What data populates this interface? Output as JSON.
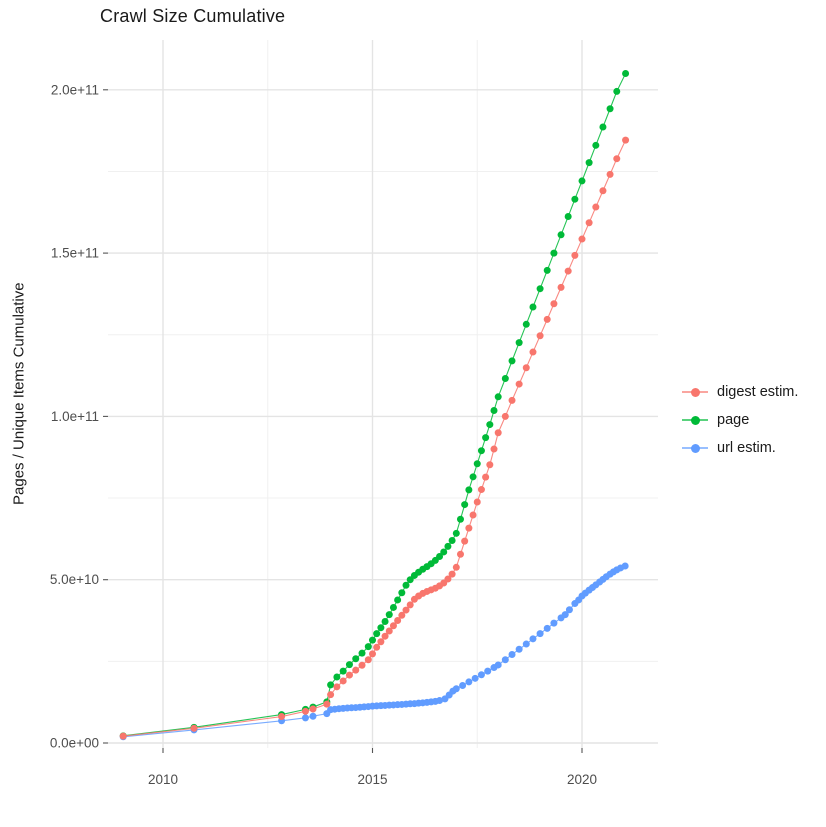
{
  "title": "Crawl Size Cumulative",
  "chart_data": {
    "type": "scatter",
    "title": "Crawl Size Cumulative",
    "xlabel": "",
    "ylabel": "Pages / Unique Items Cumulative",
    "grid": true,
    "legend_position": "right",
    "x_axis": {
      "breaks": [
        2010,
        2015,
        2020
      ],
      "labels": [
        "2010",
        "2015",
        "2020"
      ],
      "minor_breaks": [
        2012.5,
        2017.5
      ],
      "range": [
        2008.7,
        2021.8
      ]
    },
    "y_axis": {
      "breaks_billions": [
        0,
        50,
        100,
        150,
        200
      ],
      "labels": [
        "0.0e+00",
        "5.0e+10",
        "1.0e+11",
        "1.5e+11",
        "2.0e+11"
      ],
      "minor_breaks_billions": [
        25,
        75,
        125,
        175
      ],
      "range_billions": [
        -1.5,
        215
      ]
    },
    "colors": {
      "digest": "#F8766D",
      "page": "#00BA38",
      "url": "#619CFF",
      "grid_major": "#e4e4e4",
      "grid_minor": "#f0f0f0",
      "tick": "#555555",
      "tick_label": "#4d4d4d"
    },
    "series": [
      {
        "name": "page",
        "color": "#00BA38",
        "points": [
          [
            2009.05,
            2.2
          ],
          [
            2010.74,
            4.8
          ],
          [
            2012.83,
            8.7
          ],
          [
            2013.4,
            10.3
          ],
          [
            2013.58,
            11.0
          ],
          [
            2013.91,
            12.6
          ],
          [
            2014.0,
            17.8
          ],
          [
            2014.15,
            20.2
          ],
          [
            2014.3,
            22.0
          ],
          [
            2014.45,
            24.0
          ],
          [
            2014.6,
            25.8
          ],
          [
            2014.75,
            27.5
          ],
          [
            2014.9,
            29.5
          ],
          [
            2015.0,
            31.5
          ],
          [
            2015.1,
            33.5
          ],
          [
            2015.2,
            35.3
          ],
          [
            2015.3,
            37.2
          ],
          [
            2015.4,
            39.3
          ],
          [
            2015.5,
            41.5
          ],
          [
            2015.6,
            43.8
          ],
          [
            2015.7,
            46.0
          ],
          [
            2015.8,
            48.3
          ],
          [
            2015.9,
            50.0
          ],
          [
            2016.0,
            51.3
          ],
          [
            2016.1,
            52.3
          ],
          [
            2016.2,
            53.2
          ],
          [
            2016.3,
            54.0
          ],
          [
            2016.4,
            54.9
          ],
          [
            2016.5,
            55.9
          ],
          [
            2016.6,
            57.1
          ],
          [
            2016.7,
            58.5
          ],
          [
            2016.8,
            60.2
          ],
          [
            2016.9,
            62.0
          ],
          [
            2017.0,
            64.2
          ],
          [
            2017.1,
            68.5
          ],
          [
            2017.2,
            73.0
          ],
          [
            2017.3,
            77.5
          ],
          [
            2017.4,
            81.5
          ],
          [
            2017.5,
            85.5
          ],
          [
            2017.6,
            89.5
          ],
          [
            2017.7,
            93.5
          ],
          [
            2017.8,
            97.5
          ],
          [
            2017.9,
            101.8
          ],
          [
            2018.0,
            106.0
          ],
          [
            2018.17,
            111.6
          ],
          [
            2018.33,
            117.0
          ],
          [
            2018.5,
            122.6
          ],
          [
            2018.67,
            128.2
          ],
          [
            2018.83,
            133.5
          ],
          [
            2019.0,
            139.1
          ],
          [
            2019.17,
            144.7
          ],
          [
            2019.33,
            150.0
          ],
          [
            2019.5,
            155.6
          ],
          [
            2019.67,
            161.2
          ],
          [
            2019.83,
            166.5
          ],
          [
            2020.0,
            172.1
          ],
          [
            2020.17,
            177.7
          ],
          [
            2020.33,
            183.0
          ],
          [
            2020.5,
            188.6
          ],
          [
            2020.67,
            194.2
          ],
          [
            2020.83,
            199.5
          ],
          [
            2021.04,
            205.0
          ]
        ]
      },
      {
        "name": "url estim.",
        "color": "#619CFF",
        "points": [
          [
            2009.05,
            1.9
          ],
          [
            2010.74,
            4.0
          ],
          [
            2012.83,
            6.8
          ],
          [
            2013.4,
            7.7
          ],
          [
            2013.58,
            8.2
          ],
          [
            2013.91,
            9.0
          ],
          [
            2014.0,
            10.2
          ],
          [
            2014.1,
            10.35
          ],
          [
            2014.2,
            10.5
          ],
          [
            2014.3,
            10.6
          ],
          [
            2014.4,
            10.7
          ],
          [
            2014.5,
            10.8
          ],
          [
            2014.6,
            10.85
          ],
          [
            2014.7,
            10.95
          ],
          [
            2014.8,
            11.05
          ],
          [
            2014.9,
            11.15
          ],
          [
            2015.0,
            11.3
          ],
          [
            2015.1,
            11.35
          ],
          [
            2015.2,
            11.45
          ],
          [
            2015.3,
            11.5
          ],
          [
            2015.4,
            11.6
          ],
          [
            2015.5,
            11.65
          ],
          [
            2015.6,
            11.75
          ],
          [
            2015.7,
            11.8
          ],
          [
            2015.8,
            11.9
          ],
          [
            2015.9,
            12.0
          ],
          [
            2016.0,
            12.05
          ],
          [
            2016.1,
            12.2
          ],
          [
            2016.2,
            12.3
          ],
          [
            2016.3,
            12.45
          ],
          [
            2016.4,
            12.6
          ],
          [
            2016.5,
            12.75
          ],
          [
            2016.6,
            13.0
          ],
          [
            2016.73,
            13.5
          ],
          [
            2016.83,
            14.7
          ],
          [
            2016.92,
            15.9
          ],
          [
            2017.0,
            16.6
          ],
          [
            2017.15,
            17.6
          ],
          [
            2017.3,
            18.7
          ],
          [
            2017.45,
            19.8
          ],
          [
            2017.6,
            20.9
          ],
          [
            2017.75,
            22.0
          ],
          [
            2017.9,
            23.1
          ],
          [
            2018.0,
            23.9
          ],
          [
            2018.17,
            25.5
          ],
          [
            2018.33,
            27.1
          ],
          [
            2018.5,
            28.7
          ],
          [
            2018.67,
            30.3
          ],
          [
            2018.83,
            31.9
          ],
          [
            2019.0,
            33.5
          ],
          [
            2019.17,
            35.1
          ],
          [
            2019.33,
            36.7
          ],
          [
            2019.5,
            38.3
          ],
          [
            2019.6,
            39.3
          ],
          [
            2019.7,
            40.8
          ],
          [
            2019.83,
            42.7
          ],
          [
            2019.92,
            43.8
          ],
          [
            2020.0,
            45.0
          ],
          [
            2020.08,
            45.9
          ],
          [
            2020.17,
            46.8
          ],
          [
            2020.25,
            47.6
          ],
          [
            2020.33,
            48.4
          ],
          [
            2020.42,
            49.3
          ],
          [
            2020.5,
            50.1
          ],
          [
            2020.58,
            50.9
          ],
          [
            2020.67,
            51.7
          ],
          [
            2020.75,
            52.4
          ],
          [
            2020.83,
            53.0
          ],
          [
            2020.92,
            53.6
          ],
          [
            2021.03,
            54.2
          ]
        ]
      },
      {
        "name": "digest estim.",
        "color": "#F8766D",
        "points": [
          [
            2009.05,
            2.1
          ],
          [
            2010.74,
            4.5
          ],
          [
            2012.83,
            8.1
          ],
          [
            2013.4,
            9.7
          ],
          [
            2013.58,
            10.4
          ],
          [
            2013.91,
            11.9
          ],
          [
            2014.0,
            14.8
          ],
          [
            2014.15,
            17.2
          ],
          [
            2014.3,
            19.0
          ],
          [
            2014.45,
            20.8
          ],
          [
            2014.6,
            22.3
          ],
          [
            2014.75,
            23.8
          ],
          [
            2014.9,
            25.5
          ],
          [
            2015.0,
            27.3
          ],
          [
            2015.1,
            29.3
          ],
          [
            2015.2,
            31.0
          ],
          [
            2015.3,
            32.7
          ],
          [
            2015.4,
            34.3
          ],
          [
            2015.5,
            35.9
          ],
          [
            2015.6,
            37.5
          ],
          [
            2015.7,
            39.1
          ],
          [
            2015.8,
            40.7
          ],
          [
            2015.9,
            42.3
          ],
          [
            2016.0,
            44.0
          ],
          [
            2016.1,
            45.0
          ],
          [
            2016.2,
            45.8
          ],
          [
            2016.3,
            46.4
          ],
          [
            2016.4,
            46.9
          ],
          [
            2016.5,
            47.4
          ],
          [
            2016.6,
            48.1
          ],
          [
            2016.7,
            49.0
          ],
          [
            2016.8,
            50.2
          ],
          [
            2016.9,
            51.7
          ],
          [
            2017.0,
            53.8
          ],
          [
            2017.1,
            57.8
          ],
          [
            2017.2,
            61.8
          ],
          [
            2017.3,
            65.8
          ],
          [
            2017.4,
            69.8
          ],
          [
            2017.5,
            73.8
          ],
          [
            2017.6,
            77.6
          ],
          [
            2017.7,
            81.4
          ],
          [
            2017.8,
            85.2
          ],
          [
            2017.9,
            90.0
          ],
          [
            2018.0,
            95.0
          ],
          [
            2018.17,
            100.0
          ],
          [
            2018.33,
            104.9
          ],
          [
            2018.5,
            109.9
          ],
          [
            2018.67,
            114.9
          ],
          [
            2018.83,
            119.7
          ],
          [
            2019.0,
            124.7
          ],
          [
            2019.17,
            129.7
          ],
          [
            2019.33,
            134.5
          ],
          [
            2019.5,
            139.5
          ],
          [
            2019.67,
            144.5
          ],
          [
            2019.83,
            149.3
          ],
          [
            2020.0,
            154.3
          ],
          [
            2020.17,
            159.3
          ],
          [
            2020.33,
            164.1
          ],
          [
            2020.5,
            169.1
          ],
          [
            2020.67,
            174.1
          ],
          [
            2020.83,
            178.9
          ],
          [
            2021.04,
            184.6
          ]
        ]
      }
    ]
  },
  "legend": {
    "items": [
      {
        "label": "digest estim.",
        "color": "#F8766D"
      },
      {
        "label": "page",
        "color": "#00BA38"
      },
      {
        "label": "url estim.",
        "color": "#619CFF"
      }
    ]
  }
}
